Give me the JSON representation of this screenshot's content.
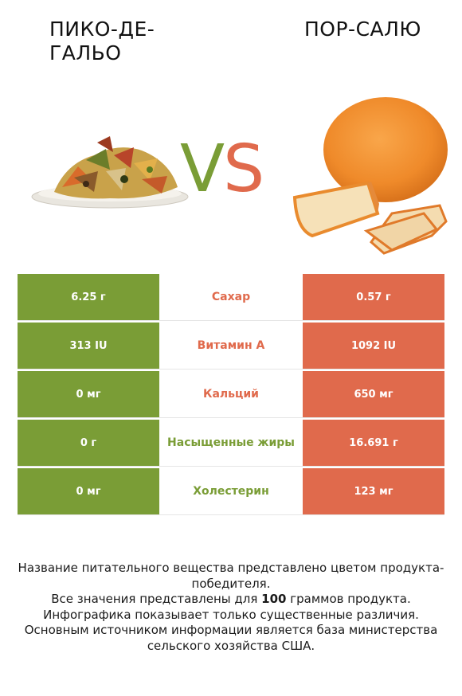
{
  "header": {
    "left_title": "ПИКО-ДЕ-ГАЛЬО",
    "right_title": "ПОР-САЛЮ",
    "vs_v": "V",
    "vs_s": "S"
  },
  "colors": {
    "left_accent": "#7a9d36",
    "right_accent": "#e06a4c"
  },
  "rows": [
    {
      "left": "6.25 г",
      "nutrient": "Сахар",
      "right": "0.57 г",
      "winner": "right"
    },
    {
      "left": "313 IU",
      "nutrient": "Витамин A",
      "right": "1092 IU",
      "winner": "right"
    },
    {
      "left": "0 мг",
      "nutrient": "Кальций",
      "right": "650 мг",
      "winner": "right"
    },
    {
      "left": "0 г",
      "nutrient": "Насыщенные жиры",
      "right": "16.691 г",
      "winner": "left"
    },
    {
      "left": "0 мг",
      "nutrient": "Холестерин",
      "right": "123 мг",
      "winner": "left"
    }
  ],
  "footnote": {
    "line1": "Название питательного вещества представлено цветом продукта-победителя.",
    "line2_pre": "Все значения представлены для ",
    "line2_bold": "100",
    "line2_post": " граммов продукта.",
    "line3": "Инфографика показывает только существенные различия.",
    "line4": "Основным источником информации является база министерства сельского хозяйства США."
  }
}
